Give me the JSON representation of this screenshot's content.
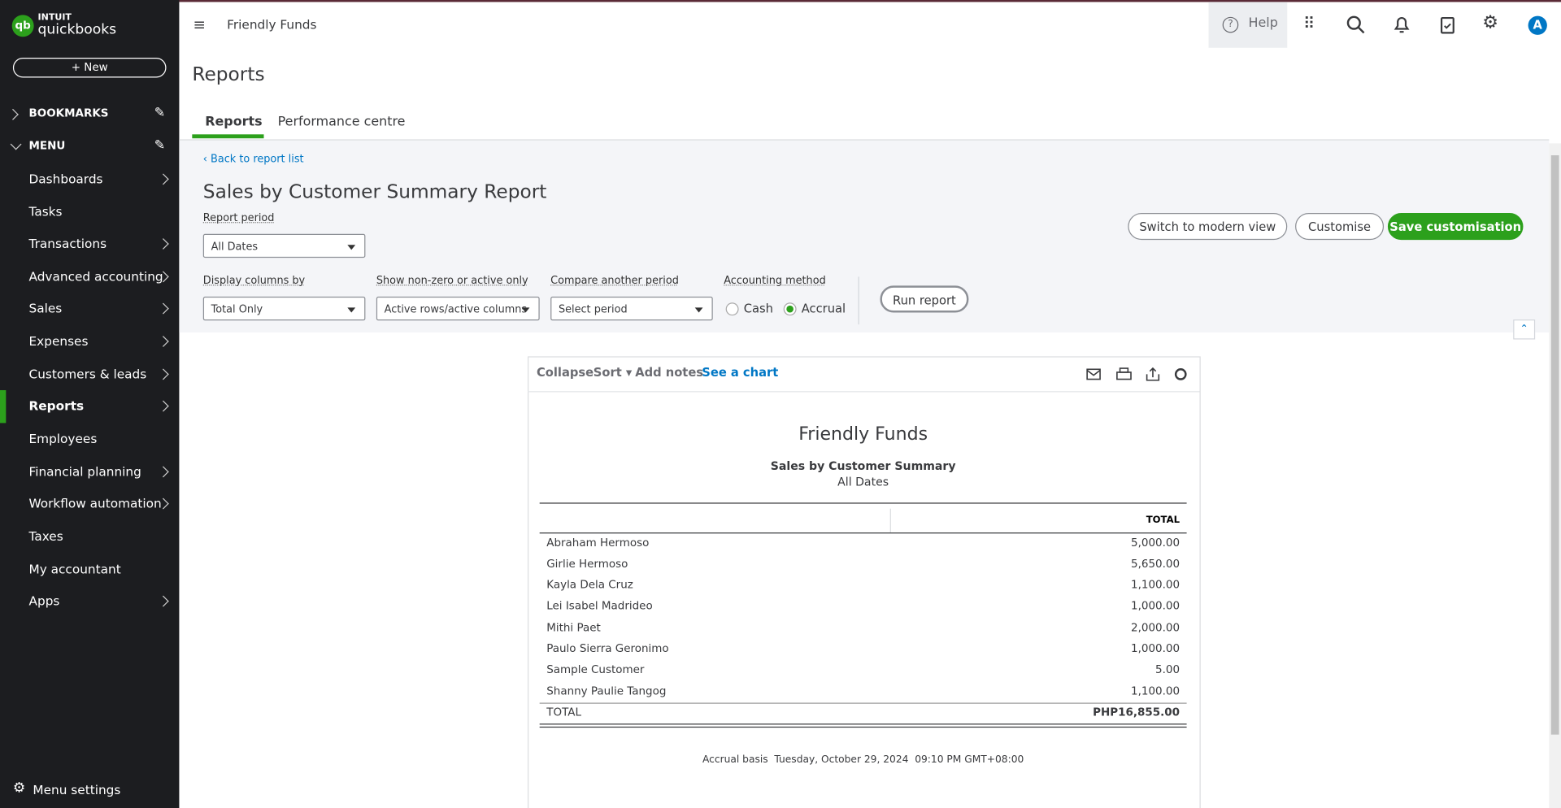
{
  "brand": {
    "line1": "INTUIT",
    "line2": "quickbooks"
  },
  "sidebar": {
    "new_button": "New",
    "bookmarks": "BOOKMARKS",
    "menu": "MENU",
    "items": [
      "Dashboards",
      "Tasks",
      "Transactions",
      "Advanced accounting",
      "Sales",
      "Expenses",
      "Customers & leads",
      "Reports",
      "Employees",
      "Financial planning",
      "Workflow automation",
      "Taxes",
      "My accountant",
      "Apps"
    ],
    "menu_settings": "Menu settings"
  },
  "topbar": {
    "company": "Friendly Funds",
    "help": "Help",
    "avatar": "A"
  },
  "page": {
    "title": "Reports",
    "tabs": [
      "Reports",
      "Performance centre"
    ]
  },
  "controls": {
    "back_link": "Back to report list",
    "report_title": "Sales by Customer Summary Report",
    "report_period_label": "Report period",
    "report_period_value": "All Dates",
    "display_columns_label": "Display columns by",
    "display_columns_value": "Total Only",
    "non_zero_label": "Show non-zero or active only",
    "non_zero_value": "Active rows/active columns",
    "compare_label": "Compare another period",
    "compare_value": "Select period",
    "accounting_label": "Accounting method",
    "cash": "Cash",
    "accrual": "Accrual",
    "run_report": "Run report",
    "switch_view": "Switch to modern view",
    "customise": "Customise",
    "save": "Save customisation"
  },
  "toolbar": {
    "collapse": "Collapse",
    "sort": "Sort",
    "add_notes": "Add notes",
    "see_chart": "See a chart"
  },
  "report": {
    "company": "Friendly Funds",
    "title": "Sales by Customer Summary",
    "period": "All Dates",
    "column": "TOTAL",
    "rows": [
      [
        "Abraham Hermoso",
        "5,000.00"
      ],
      [
        "Girlie Hermoso",
        "5,650.00"
      ],
      [
        "Kayla Dela Cruz",
        "1,100.00"
      ],
      [
        "Lei Isabel Madrideo",
        "1,000.00"
      ],
      [
        "Mithi Paet",
        "2,000.00"
      ],
      [
        "Paulo Sierra Geronimo",
        "1,000.00"
      ],
      [
        "Sample Customer",
        "5.00"
      ],
      [
        "Shanny Paulie Tangog",
        "1,100.00"
      ]
    ],
    "total": [
      "TOTAL",
      "PHP16,855.00"
    ],
    "footer": "Accrual basis  Tuesday, October 29, 2024  09:10 PM GMT+08:00"
  }
}
